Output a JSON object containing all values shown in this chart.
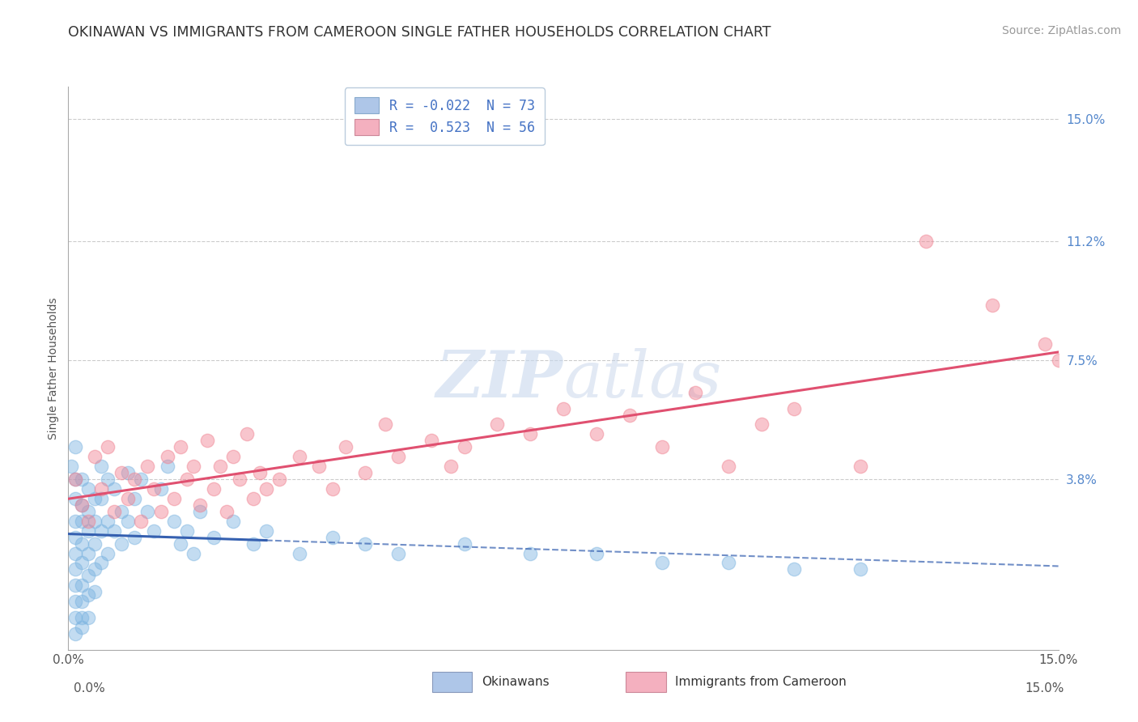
{
  "title": "OKINAWAN VS IMMIGRANTS FROM CAMEROON SINGLE FATHER HOUSEHOLDS CORRELATION CHART",
  "source": "Source: ZipAtlas.com",
  "ylabel": "Single Father Households",
  "ytick_labels": [
    "15.0%",
    "11.2%",
    "7.5%",
    "3.8%"
  ],
  "ytick_values": [
    0.15,
    0.112,
    0.075,
    0.038
  ],
  "xlim": [
    0.0,
    0.15
  ],
  "ylim": [
    -0.015,
    0.16
  ],
  "okinawan_color": "#7ab3e0",
  "cameroon_color": "#f08090",
  "okinawan_line_color": "#3560b0",
  "cameroon_line_color": "#e05070",
  "background_color": "#ffffff",
  "grid_color": "#cccccc",
  "legend_entry1": "R = -0.022  N = 73",
  "legend_entry2": "R =  0.523  N = 56",
  "legend_color1": "#aec6e8",
  "legend_color2": "#f4b0bf",
  "okinawan_points": [
    [
      0.0005,
      0.042
    ],
    [
      0.001,
      0.048
    ],
    [
      0.001,
      0.038
    ],
    [
      0.001,
      0.032
    ],
    [
      0.001,
      0.025
    ],
    [
      0.001,
      0.02
    ],
    [
      0.001,
      0.015
    ],
    [
      0.001,
      0.01
    ],
    [
      0.001,
      0.005
    ],
    [
      0.001,
      0.0
    ],
    [
      0.001,
      -0.005
    ],
    [
      0.001,
      -0.01
    ],
    [
      0.002,
      0.038
    ],
    [
      0.002,
      0.03
    ],
    [
      0.002,
      0.025
    ],
    [
      0.002,
      0.018
    ],
    [
      0.002,
      0.012
    ],
    [
      0.002,
      0.005
    ],
    [
      0.002,
      0.0
    ],
    [
      0.002,
      -0.005
    ],
    [
      0.002,
      -0.008
    ],
    [
      0.003,
      0.035
    ],
    [
      0.003,
      0.028
    ],
    [
      0.003,
      0.022
    ],
    [
      0.003,
      0.015
    ],
    [
      0.003,
      0.008
    ],
    [
      0.003,
      0.002
    ],
    [
      0.003,
      -0.005
    ],
    [
      0.004,
      0.032
    ],
    [
      0.004,
      0.025
    ],
    [
      0.004,
      0.018
    ],
    [
      0.004,
      0.01
    ],
    [
      0.004,
      0.003
    ],
    [
      0.005,
      0.042
    ],
    [
      0.005,
      0.032
    ],
    [
      0.005,
      0.022
    ],
    [
      0.005,
      0.012
    ],
    [
      0.006,
      0.038
    ],
    [
      0.006,
      0.025
    ],
    [
      0.006,
      0.015
    ],
    [
      0.007,
      0.035
    ],
    [
      0.007,
      0.022
    ],
    [
      0.008,
      0.028
    ],
    [
      0.008,
      0.018
    ],
    [
      0.009,
      0.04
    ],
    [
      0.009,
      0.025
    ],
    [
      0.01,
      0.032
    ],
    [
      0.01,
      0.02
    ],
    [
      0.011,
      0.038
    ],
    [
      0.012,
      0.028
    ],
    [
      0.013,
      0.022
    ],
    [
      0.014,
      0.035
    ],
    [
      0.015,
      0.042
    ],
    [
      0.016,
      0.025
    ],
    [
      0.017,
      0.018
    ],
    [
      0.018,
      0.022
    ],
    [
      0.019,
      0.015
    ],
    [
      0.02,
      0.028
    ],
    [
      0.022,
      0.02
    ],
    [
      0.025,
      0.025
    ],
    [
      0.028,
      0.018
    ],
    [
      0.03,
      0.022
    ],
    [
      0.035,
      0.015
    ],
    [
      0.04,
      0.02
    ],
    [
      0.045,
      0.018
    ],
    [
      0.05,
      0.015
    ],
    [
      0.06,
      0.018
    ],
    [
      0.07,
      0.015
    ],
    [
      0.08,
      0.015
    ],
    [
      0.09,
      0.012
    ],
    [
      0.1,
      0.012
    ],
    [
      0.11,
      0.01
    ],
    [
      0.12,
      0.01
    ]
  ],
  "cameroon_points": [
    [
      0.001,
      0.038
    ],
    [
      0.002,
      0.03
    ],
    [
      0.003,
      0.025
    ],
    [
      0.004,
      0.045
    ],
    [
      0.005,
      0.035
    ],
    [
      0.006,
      0.048
    ],
    [
      0.007,
      0.028
    ],
    [
      0.008,
      0.04
    ],
    [
      0.009,
      0.032
    ],
    [
      0.01,
      0.038
    ],
    [
      0.011,
      0.025
    ],
    [
      0.012,
      0.042
    ],
    [
      0.013,
      0.035
    ],
    [
      0.014,
      0.028
    ],
    [
      0.015,
      0.045
    ],
    [
      0.016,
      0.032
    ],
    [
      0.017,
      0.048
    ],
    [
      0.018,
      0.038
    ],
    [
      0.019,
      0.042
    ],
    [
      0.02,
      0.03
    ],
    [
      0.021,
      0.05
    ],
    [
      0.022,
      0.035
    ],
    [
      0.023,
      0.042
    ],
    [
      0.024,
      0.028
    ],
    [
      0.025,
      0.045
    ],
    [
      0.026,
      0.038
    ],
    [
      0.027,
      0.052
    ],
    [
      0.028,
      0.032
    ],
    [
      0.029,
      0.04
    ],
    [
      0.03,
      0.035
    ],
    [
      0.032,
      0.038
    ],
    [
      0.035,
      0.045
    ],
    [
      0.038,
      0.042
    ],
    [
      0.04,
      0.035
    ],
    [
      0.042,
      0.048
    ],
    [
      0.045,
      0.04
    ],
    [
      0.048,
      0.055
    ],
    [
      0.05,
      0.045
    ],
    [
      0.055,
      0.05
    ],
    [
      0.058,
      0.042
    ],
    [
      0.06,
      0.048
    ],
    [
      0.065,
      0.055
    ],
    [
      0.07,
      0.052
    ],
    [
      0.075,
      0.06
    ],
    [
      0.08,
      0.052
    ],
    [
      0.085,
      0.058
    ],
    [
      0.09,
      0.048
    ],
    [
      0.095,
      0.065
    ],
    [
      0.1,
      0.042
    ],
    [
      0.105,
      0.055
    ],
    [
      0.11,
      0.06
    ],
    [
      0.12,
      0.042
    ],
    [
      0.13,
      0.112
    ],
    [
      0.14,
      0.092
    ],
    [
      0.148,
      0.08
    ],
    [
      0.15,
      0.075
    ]
  ]
}
